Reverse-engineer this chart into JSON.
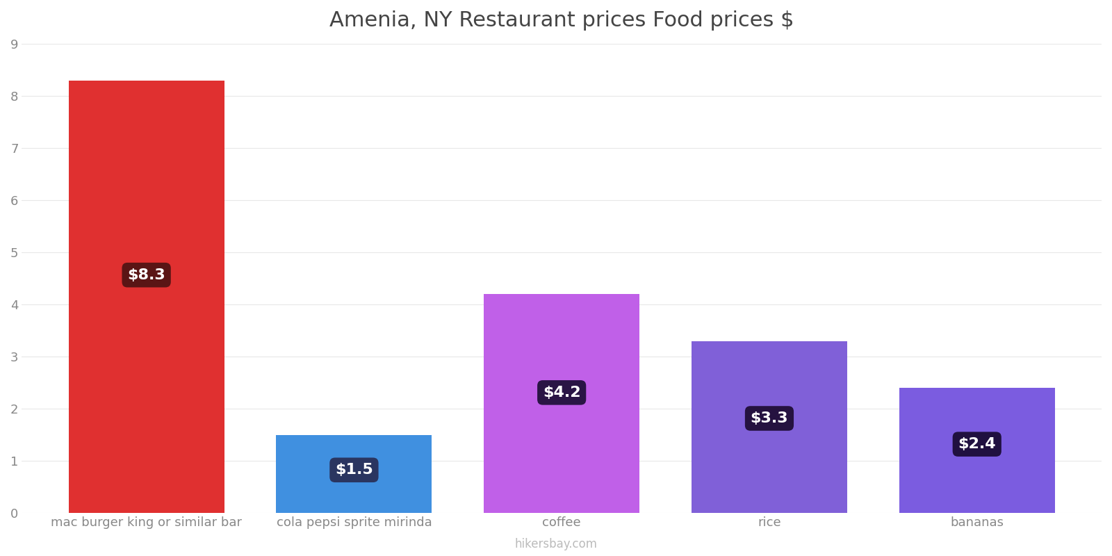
{
  "title": "Amenia, NY Restaurant prices Food prices $",
  "categories": [
    "mac burger king or similar bar",
    "cola pepsi sprite mirinda",
    "coffee",
    "rice",
    "bananas"
  ],
  "values": [
    8.3,
    1.5,
    4.2,
    3.3,
    2.4
  ],
  "bar_colors": [
    "#e03030",
    "#4090e0",
    "#c060e8",
    "#8060d8",
    "#7b5ce0"
  ],
  "label_texts": [
    "$8.3",
    "$1.5",
    "$4.2",
    "$3.3",
    "$2.4"
  ],
  "label_bg_colors": [
    "#5a1515",
    "#2a3560",
    "#2a1545",
    "#251240",
    "#201040"
  ],
  "ylim": [
    0,
    9
  ],
  "yticks": [
    0,
    1,
    2,
    3,
    4,
    5,
    6,
    7,
    8,
    9
  ],
  "background_color": "#ffffff",
  "title_fontsize": 22,
  "tick_label_fontsize": 13,
  "watermark": "hikersbay.com",
  "label_font_color": "#ffffff",
  "label_fontsize": 16,
  "bar_width": 0.75
}
